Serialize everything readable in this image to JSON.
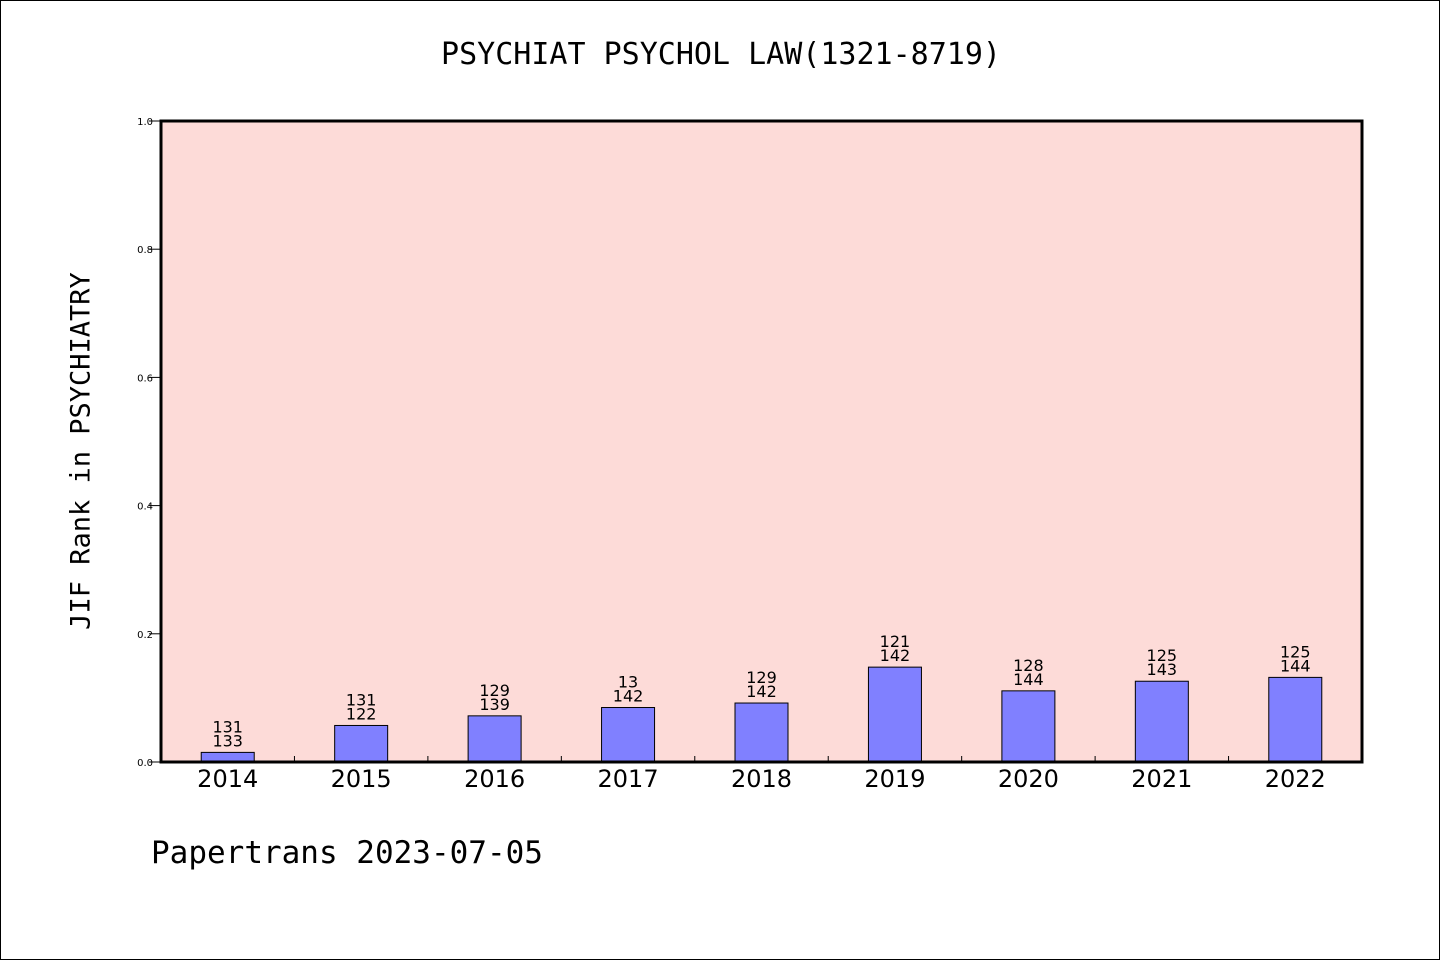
{
  "chart_data": {
    "type": "bar",
    "title": "PSYCHIAT PSYCHOL LAW(1321-8719)",
    "xlabel": "",
    "ylabel": "JIF Rank in PSYCHIATRY",
    "ylim": [
      0,
      1.0
    ],
    "yticks": [
      "0.0",
      "0.2",
      "0.4",
      "0.6",
      "0.8",
      "1.0"
    ],
    "categories": [
      "2014",
      "2015",
      "2016",
      "2017",
      "2018",
      "2019",
      "2020",
      "2021",
      "2022"
    ],
    "values": [
      0.015,
      0.057,
      0.072,
      0.085,
      0.092,
      0.148,
      0.111,
      0.126,
      0.132
    ],
    "bar_labels": [
      [
        "131",
        "133"
      ],
      [
        "131",
        "122"
      ],
      [
        "129",
        "139"
      ],
      [
        "13",
        "142"
      ],
      [
        "129",
        "142"
      ],
      [
        "121",
        "142"
      ],
      [
        "128",
        "144"
      ],
      [
        "125",
        "143"
      ],
      [
        "125",
        "144"
      ]
    ],
    "grid": false,
    "colors": {
      "plot_background": "#fddbd8",
      "bar_fill": "#8080ff",
      "bar_stroke": "#000000"
    }
  },
  "footer": "Papertrans 2023-07-05"
}
